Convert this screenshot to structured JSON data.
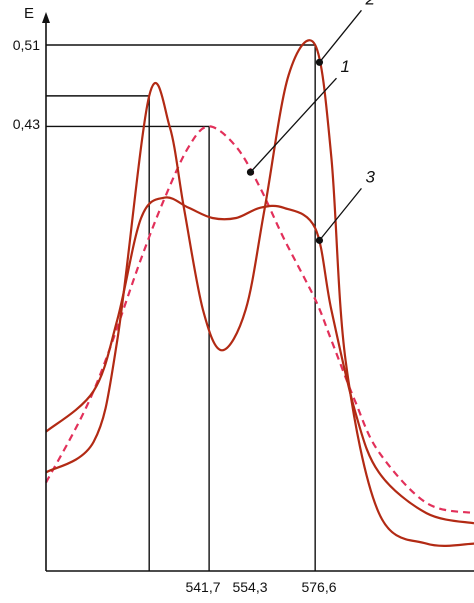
{
  "chart_data": {
    "type": "line",
    "ylabel": "E",
    "x_ticks": [
      "541,7",
      "554,3",
      "576,6"
    ],
    "y_ticks": [
      "0,51",
      "0,43"
    ],
    "grid": false,
    "legend": "none",
    "colors": {
      "curve": "#b22a14",
      "dashed": "#e2305a",
      "axis": "#111111"
    },
    "series": [
      {
        "name": "1",
        "style": "dashed",
        "x": [
          520,
          530,
          540,
          545,
          550,
          554.3,
          560,
          565,
          570,
          576.6,
          580,
          585,
          590,
          600,
          610
        ],
        "y": [
          0.08,
          0.17,
          0.3,
          0.36,
          0.41,
          0.43,
          0.41,
          0.37,
          0.32,
          0.26,
          0.22,
          0.16,
          0.11,
          0.06,
          0.05
        ]
      },
      {
        "name": "2",
        "style": "solid",
        "x": [
          520,
          530,
          535,
          541.7,
          546,
          549,
          553,
          557,
          562,
          566,
          571,
          576.6,
          580,
          583,
          590,
          600,
          610
        ],
        "y": [
          0.09,
          0.12,
          0.22,
          0.46,
          0.43,
          0.35,
          0.25,
          0.21,
          0.25,
          0.35,
          0.48,
          0.51,
          0.4,
          0.2,
          0.05,
          0.02,
          0.02
        ]
      },
      {
        "name": "3",
        "style": "solid",
        "x": [
          520,
          530,
          535,
          540,
          545,
          550,
          555,
          560,
          565,
          570,
          576.6,
          580,
          585,
          590,
          600,
          610
        ],
        "y": [
          0.13,
          0.17,
          0.24,
          0.34,
          0.36,
          0.35,
          0.34,
          0.34,
          0.35,
          0.35,
          0.33,
          0.25,
          0.15,
          0.09,
          0.05,
          0.04
        ]
      }
    ],
    "annotations": [
      {
        "label": "1",
        "series": "1",
        "x": 563,
        "y": 0.385
      },
      {
        "label": "2",
        "series": "2",
        "x": 577.5,
        "y": 0.493
      },
      {
        "label": "3",
        "series": "3",
        "x": 577.5,
        "y": 0.318
      }
    ],
    "reference_lines": [
      {
        "x": 541.7,
        "y": 0.46
      },
      {
        "x": 554.3,
        "y": 0.43
      },
      {
        "x": 576.6,
        "y": 0.51
      }
    ]
  }
}
